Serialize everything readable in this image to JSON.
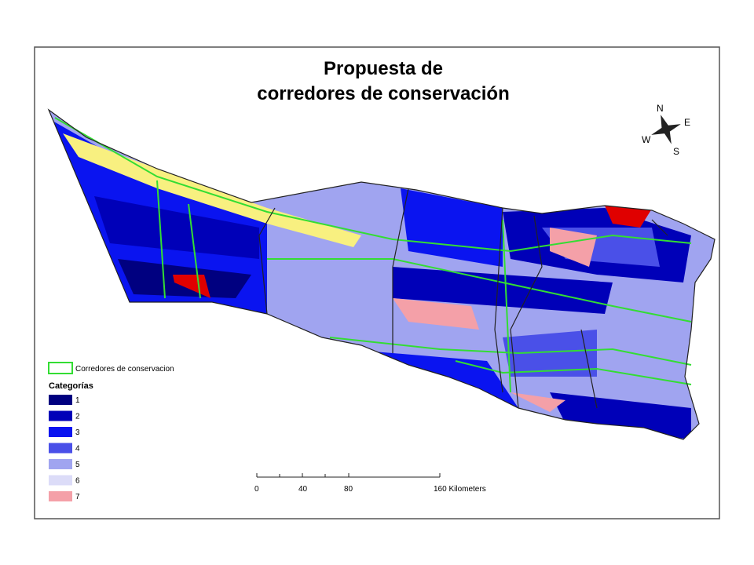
{
  "title": [
    "Propuesta de",
    "corredores de conservación"
  ],
  "legend": {
    "corridor": {
      "label": "Corredores de conservacion",
      "color": "#33dd33"
    },
    "heading": "Categorías",
    "categories": [
      {
        "label": "1",
        "color": "#000080"
      },
      {
        "label": "2",
        "color": "#0000b8"
      },
      {
        "label": "3",
        "color": "#0a14f0"
      },
      {
        "label": "4",
        "color": "#4a50e8"
      },
      {
        "label": "5",
        "color": "#a0a4f0"
      },
      {
        "label": "6",
        "color": "#dcdcf8"
      },
      {
        "label": "7",
        "color": "#f4a0a8"
      }
    ]
  },
  "scale_bar": {
    "labels": [
      "0",
      "40",
      "80",
      "160 Kilometers"
    ]
  },
  "compass": {
    "north": "N",
    "east": "E",
    "south": "S",
    "west": "W"
  }
}
